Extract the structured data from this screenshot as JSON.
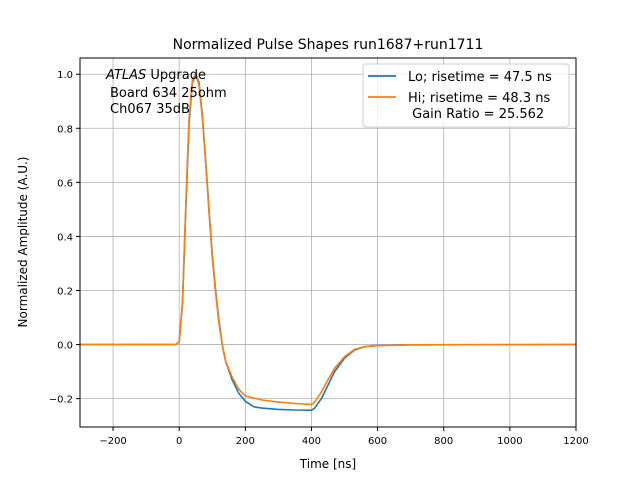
{
  "chart_data": {
    "type": "line",
    "title": "Normalized Pulse Shapes run1687+run1711",
    "xlabel": "Time [ns]",
    "ylabel": "Normalized Amplitude (A.U.)",
    "xlim": [
      -300,
      1200
    ],
    "ylim": [
      -0.305,
      1.06
    ],
    "xticks": [
      -200,
      0,
      200,
      400,
      600,
      800,
      1000,
      1200
    ],
    "xtick_labels": [
      "−200",
      "0",
      "200",
      "400",
      "600",
      "800",
      "1000",
      "1200"
    ],
    "yticks": [
      -0.2,
      0.0,
      0.2,
      0.4,
      0.6,
      0.8,
      1.0
    ],
    "ytick_labels": [
      "−0.2",
      "0.0",
      "0.2",
      "0.4",
      "0.6",
      "0.8",
      "1.0"
    ],
    "grid": true,
    "legend_position": "top-right",
    "annotation": {
      "italic": "ATLAS",
      "line1": " Upgrade",
      "line2": "Board 634 25ohm",
      "line3": "Ch067 35dB"
    },
    "series": [
      {
        "name": "Lo; risetime = 47.5 ns",
        "color": "#1f77b4",
        "x": [
          -300,
          -10,
          0,
          10,
          20,
          30,
          40,
          50,
          60,
          70,
          80,
          90,
          100,
          110,
          120,
          130,
          140,
          160,
          180,
          200,
          225,
          250,
          300,
          350,
          400,
          410,
          430,
          450,
          470,
          500,
          530,
          560,
          600,
          700,
          1200
        ],
        "y": [
          0,
          0,
          0.01,
          0.15,
          0.5,
          0.82,
          0.97,
          1.0,
          0.97,
          0.85,
          0.68,
          0.5,
          0.33,
          0.2,
          0.09,
          0.0,
          -0.06,
          -0.13,
          -0.18,
          -0.21,
          -0.23,
          -0.235,
          -0.24,
          -0.242,
          -0.243,
          -0.235,
          -0.2,
          -0.15,
          -0.1,
          -0.05,
          -0.02,
          -0.008,
          -0.003,
          -0.001,
          0
        ]
      },
      {
        "name": "Hi; risetime = 48.3 ns",
        "extra": " Gain Ratio = 25.562",
        "color": "#ff7f0e",
        "x": [
          -300,
          -10,
          0,
          10,
          20,
          30,
          40,
          50,
          60,
          70,
          80,
          90,
          100,
          110,
          120,
          130,
          140,
          160,
          180,
          200,
          250,
          300,
          350,
          400,
          410,
          430,
          450,
          470,
          500,
          530,
          560,
          600,
          700,
          1200
        ],
        "y": [
          0,
          0,
          0.01,
          0.16,
          0.52,
          0.84,
          0.98,
          1.0,
          0.96,
          0.84,
          0.67,
          0.49,
          0.32,
          0.19,
          0.08,
          0.0,
          -0.06,
          -0.12,
          -0.165,
          -0.19,
          -0.205,
          -0.213,
          -0.218,
          -0.222,
          -0.212,
          -0.175,
          -0.13,
          -0.088,
          -0.045,
          -0.018,
          -0.008,
          -0.004,
          -0.001,
          0
        ]
      }
    ]
  }
}
